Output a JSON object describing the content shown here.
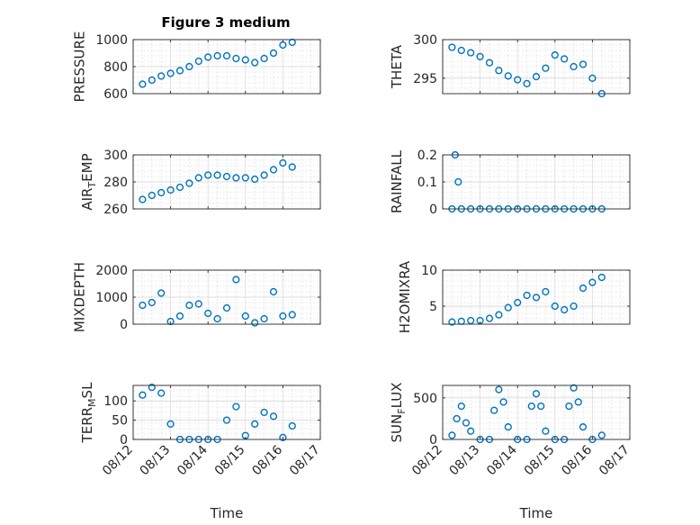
{
  "figure": {
    "title": "Figure 3 medium"
  },
  "chart_data": [
    {
      "type": "scatter",
      "ylabel": "PRESSURE",
      "xlim": [
        "08/12",
        "08/17"
      ],
      "ylim": [
        600,
        1000
      ],
      "yticks": [
        "600",
        "800",
        "1000"
      ],
      "xtick_labels": [],
      "grid": true,
      "series": [
        {
          "x": [
            "08/12 06:00",
            "08/12 12:00",
            "08/12 18:00",
            "08/13 00:00",
            "08/13 06:00",
            "08/13 12:00",
            "08/13 18:00",
            "08/14 00:00",
            "08/14 06:00",
            "08/14 12:00",
            "08/14 18:00",
            "08/15 00:00",
            "08/15 06:00",
            "08/15 12:00",
            "08/15 18:00",
            "08/16 00:00",
            "08/16 06:00"
          ],
          "y": [
            670,
            700,
            730,
            750,
            770,
            800,
            840,
            870,
            880,
            880,
            860,
            850,
            830,
            860,
            900,
            960,
            980
          ]
        }
      ]
    },
    {
      "type": "scatter",
      "ylabel": "THETA",
      "xlim": [
        "08/12",
        "08/17"
      ],
      "ylim": [
        293,
        300
      ],
      "yticks": [
        "295",
        "300"
      ],
      "xtick_labels": [],
      "grid": true,
      "series": [
        {
          "x": [
            "08/12 06:00",
            "08/12 12:00",
            "08/12 18:00",
            "08/13 00:00",
            "08/13 06:00",
            "08/13 12:00",
            "08/13 18:00",
            "08/14 00:00",
            "08/14 06:00",
            "08/14 12:00",
            "08/14 18:00",
            "08/15 00:00",
            "08/15 06:00",
            "08/15 12:00",
            "08/15 18:00",
            "08/16 00:00",
            "08/16 06:00"
          ],
          "y": [
            299,
            298.6,
            298.3,
            297.8,
            297,
            296,
            295.3,
            294.8,
            294.3,
            295.2,
            296.3,
            298,
            297.5,
            296.5,
            296.8,
            295,
            293
          ]
        }
      ]
    },
    {
      "type": "scatter",
      "ylabel": "AIR_TEMP",
      "xlim": [
        "08/12",
        "08/17"
      ],
      "ylim": [
        260,
        300
      ],
      "yticks": [
        "260",
        "280",
        "300"
      ],
      "xtick_labels": [],
      "grid": true,
      "series": [
        {
          "x": [
            "08/12 06:00",
            "08/12 12:00",
            "08/12 18:00",
            "08/13 00:00",
            "08/13 06:00",
            "08/13 12:00",
            "08/13 18:00",
            "08/14 00:00",
            "08/14 06:00",
            "08/14 12:00",
            "08/14 18:00",
            "08/15 00:00",
            "08/15 06:00",
            "08/15 12:00",
            "08/15 18:00",
            "08/16 00:00",
            "08/16 06:00"
          ],
          "y": [
            267,
            270,
            272,
            274,
            276,
            279,
            283,
            285,
            285,
            284,
            283,
            283,
            282,
            285,
            289,
            294,
            291
          ]
        }
      ]
    },
    {
      "type": "scatter",
      "ylabel": "RAINFALL",
      "xlim": [
        "08/12",
        "08/17"
      ],
      "ylim": [
        0,
        0.2
      ],
      "yticks": [
        "0",
        "0.1",
        "0.2"
      ],
      "xtick_labels": [],
      "grid": true,
      "series": [
        {
          "x": [
            "08/12 06:00",
            "08/12 08:00",
            "08/12 10:00",
            "08/12 12:00",
            "08/12 18:00",
            "08/13 00:00",
            "08/13 06:00",
            "08/13 12:00",
            "08/13 18:00",
            "08/14 00:00",
            "08/14 06:00",
            "08/14 12:00",
            "08/14 18:00",
            "08/15 00:00",
            "08/15 06:00",
            "08/15 12:00",
            "08/15 18:00",
            "08/16 00:00",
            "08/16 06:00"
          ],
          "y": [
            0,
            0.2,
            0.1,
            0,
            0,
            0,
            0,
            0,
            0,
            0,
            0,
            0,
            0,
            0,
            0,
            0,
            0,
            0,
            0
          ]
        }
      ]
    },
    {
      "type": "scatter",
      "ylabel": "MIXDEPTH",
      "xlim": [
        "08/12",
        "08/17"
      ],
      "ylim": [
        0,
        2000
      ],
      "yticks": [
        "0",
        "1000",
        "2000"
      ],
      "xtick_labels": [],
      "grid": true,
      "series": [
        {
          "x": [
            "08/12 06:00",
            "08/12 12:00",
            "08/12 18:00",
            "08/13 00:00",
            "08/13 06:00",
            "08/13 12:00",
            "08/13 18:00",
            "08/14 00:00",
            "08/14 06:00",
            "08/14 12:00",
            "08/14 18:00",
            "08/15 00:00",
            "08/15 06:00",
            "08/15 12:00",
            "08/15 18:00",
            "08/16 00:00",
            "08/16 06:00"
          ],
          "y": [
            700,
            800,
            1150,
            100,
            300,
            700,
            750,
            400,
            200,
            600,
            1650,
            300,
            50,
            200,
            1200,
            300,
            350
          ]
        }
      ]
    },
    {
      "type": "scatter",
      "ylabel": "H2OMIXRA",
      "xlim": [
        "08/12",
        "08/17"
      ],
      "ylim": [
        2.5,
        10
      ],
      "yticks": [
        "5",
        "10"
      ],
      "xtick_labels": [],
      "grid": true,
      "series": [
        {
          "x": [
            "08/12 06:00",
            "08/12 12:00",
            "08/12 18:00",
            "08/13 00:00",
            "08/13 06:00",
            "08/13 12:00",
            "08/13 18:00",
            "08/14 00:00",
            "08/14 06:00",
            "08/14 12:00",
            "08/14 18:00",
            "08/15 00:00",
            "08/15 06:00",
            "08/15 12:00",
            "08/15 18:00",
            "08/16 00:00",
            "08/16 06:00"
          ],
          "y": [
            2.8,
            2.9,
            3,
            3,
            3.3,
            3.8,
            4.8,
            5.5,
            6.5,
            6.2,
            7,
            5,
            4.5,
            5,
            7.5,
            8.3,
            9
          ]
        }
      ]
    },
    {
      "type": "scatter",
      "ylabel": "TERR_MSL",
      "xlim": [
        "08/12",
        "08/17"
      ],
      "ylim": [
        0,
        140
      ],
      "yticks": [
        "0",
        "50",
        "100"
      ],
      "xtick_labels": [
        "08/12",
        "08/13",
        "08/14",
        "08/15",
        "08/16",
        "08/17"
      ],
      "xlabel": "Time",
      "grid": true,
      "series": [
        {
          "x": [
            "08/12 06:00",
            "08/12 12:00",
            "08/12 18:00",
            "08/13 00:00",
            "08/13 06:00",
            "08/13 12:00",
            "08/13 18:00",
            "08/14 00:00",
            "08/14 06:00",
            "08/14 12:00",
            "08/14 18:00",
            "08/15 00:00",
            "08/15 06:00",
            "08/15 12:00",
            "08/15 18:00",
            "08/16 00:00",
            "08/16 06:00"
          ],
          "y": [
            115,
            135,
            120,
            40,
            0,
            0,
            0,
            0,
            0,
            50,
            85,
            10,
            40,
            70,
            60,
            5,
            35
          ]
        }
      ]
    },
    {
      "type": "scatter",
      "ylabel": "SUN_FLUX",
      "xlim": [
        "08/12",
        "08/17"
      ],
      "ylim": [
        0,
        650
      ],
      "yticks": [
        "0",
        "500"
      ],
      "xtick_labels": [
        "08/12",
        "08/13",
        "08/14",
        "08/15",
        "08/16",
        "08/17"
      ],
      "xlabel": "Time",
      "grid": true,
      "series": [
        {
          "x": [
            "08/12 06:00",
            "08/12 09:00",
            "08/12 12:00",
            "08/12 15:00",
            "08/12 18:00",
            "08/13 00:00",
            "08/13 06:00",
            "08/13 09:00",
            "08/13 12:00",
            "08/13 15:00",
            "08/13 18:00",
            "08/14 00:00",
            "08/14 06:00",
            "08/14 09:00",
            "08/14 12:00",
            "08/14 15:00",
            "08/14 18:00",
            "08/15 00:00",
            "08/15 06:00",
            "08/15 09:00",
            "08/15 12:00",
            "08/15 15:00",
            "08/15 18:00",
            "08/16 00:00",
            "08/16 06:00"
          ],
          "y": [
            50,
            250,
            400,
            200,
            100,
            0,
            0,
            350,
            600,
            450,
            150,
            0,
            0,
            400,
            550,
            400,
            100,
            0,
            0,
            400,
            620,
            450,
            150,
            0,
            50
          ]
        }
      ]
    }
  ]
}
